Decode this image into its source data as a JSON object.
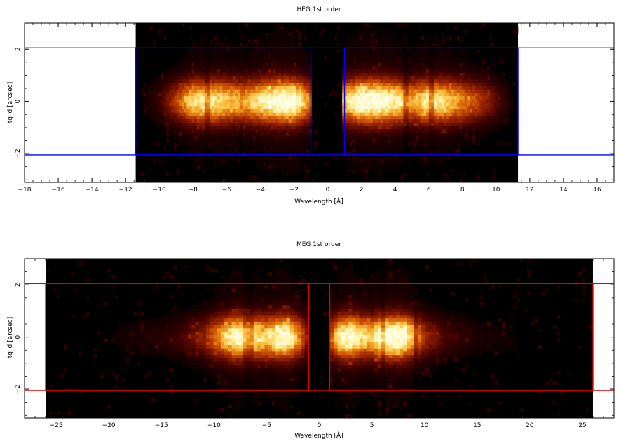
{
  "chart_data": [
    {
      "type": "heatmap",
      "title": "HEG 1st order",
      "xlabel": "Wavelength [Å]",
      "ylabel": "tg_d [arcsec]",
      "xlim": [
        -18,
        17
      ],
      "ylim": [
        -3.1,
        3.0
      ],
      "xticks": [
        -18,
        -16,
        -14,
        -12,
        -10,
        -8,
        -6,
        -4,
        -2,
        0,
        2,
        4,
        6,
        8,
        10,
        12,
        14,
        16
      ],
      "yticks": [
        -2,
        0,
        2
      ],
      "image_extent": {
        "x": [
          -11.4,
          11.3
        ],
        "y": [
          -3.1,
          3.0
        ]
      },
      "colormap": [
        "#000000",
        "#3a0000",
        "#7a1500",
        "#b83a00",
        "#e27a10",
        "#fbc040",
        "#fff2a0",
        "#ffffe8"
      ],
      "intensity_profile": {
        "description": "dispersed source spectrum, bright band centred on tg_d = 0",
        "wavelength": [
          -11,
          -10,
          -9,
          -8,
          -7,
          -6,
          -5,
          -4,
          -3,
          -2,
          -1,
          1,
          2,
          3,
          4,
          5,
          6,
          7,
          8,
          9,
          10,
          11
        ],
        "relative_intensity": [
          0.03,
          0.12,
          0.4,
          0.75,
          0.8,
          0.72,
          0.6,
          0.8,
          0.95,
          0.98,
          0.5,
          0.7,
          0.98,
          0.95,
          0.85,
          0.6,
          0.82,
          0.75,
          0.55,
          0.4,
          0.2,
          0.03
        ]
      },
      "absorption_lines_x": [
        -7.1,
        4.6,
        6.2
      ],
      "extraction_regions": {
        "color": "#0000ff",
        "boxes": [
          {
            "x": [
              -11.4,
              -1.0
            ],
            "y": [
              -2.05,
              2.05
            ]
          },
          {
            "x": [
              1.0,
              11.3
            ],
            "y": [
              -2.05,
              2.05
            ]
          }
        ],
        "horizontal_lines_y": [
          -2.05,
          2.05
        ]
      }
    },
    {
      "type": "heatmap",
      "title": "MEG 1st order",
      "xlabel": "Wavelength [Å]",
      "ylabel": "tg_d [arcsec]",
      "xlim": [
        -28,
        28
      ],
      "ylim": [
        -3.1,
        3.0
      ],
      "xticks": [
        -25,
        -20,
        -15,
        -10,
        -5,
        0,
        5,
        10,
        15,
        20,
        25
      ],
      "yticks": [
        -2,
        0,
        2
      ],
      "image_extent": {
        "x": [
          -26,
          26
        ],
        "y": [
          -3.1,
          3.0
        ]
      },
      "colormap": [
        "#000000",
        "#3a0000",
        "#7a1500",
        "#b83a00",
        "#e27a10",
        "#fbc040",
        "#fff2a0",
        "#ffffe8"
      ],
      "intensity_profile": {
        "description": "dispersed source spectrum, bright band centred on tg_d = 0",
        "wavelength": [
          -26,
          -20,
          -15,
          -13,
          -11,
          -9,
          -8,
          -7,
          -6,
          -5,
          -4,
          -3,
          -2,
          -1,
          1,
          2,
          3,
          4,
          5,
          6,
          7,
          8,
          9,
          10,
          12,
          15,
          20,
          26
        ],
        "relative_intensity": [
          0.01,
          0.03,
          0.08,
          0.15,
          0.3,
          0.7,
          0.88,
          0.95,
          0.8,
          0.7,
          0.88,
          0.92,
          0.6,
          0.2,
          0.4,
          0.85,
          0.92,
          0.75,
          0.7,
          0.98,
          0.98,
          0.92,
          0.65,
          0.35,
          0.15,
          0.06,
          0.02,
          0.01
        ]
      },
      "absorption_lines_x": [
        -7.1,
        -6.6,
        6.1,
        9.2
      ],
      "extraction_regions": {
        "color": "#dd0000",
        "boxes": [
          {
            "x": [
              -26,
              -1.0
            ],
            "y": [
              -2.05,
              2.05
            ]
          },
          {
            "x": [
              1.0,
              26
            ],
            "y": [
              -2.05,
              2.05
            ]
          }
        ],
        "horizontal_lines_y": [
          -2.05,
          2.05
        ]
      }
    }
  ]
}
